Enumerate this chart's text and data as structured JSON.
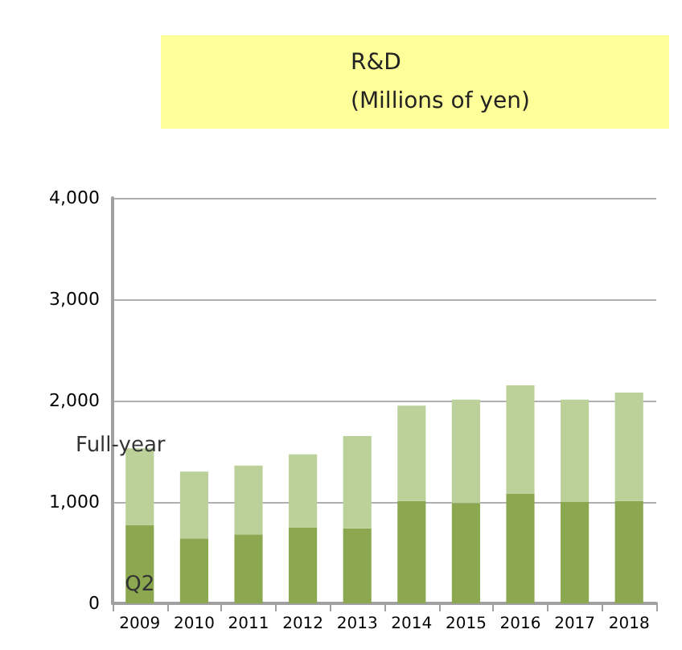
{
  "chart_data": {
    "type": "bar",
    "title": "R&D",
    "subtitle": "(Millions of yen)",
    "stacked": true,
    "categories": [
      "2009",
      "2010",
      "2011",
      "2012",
      "2013",
      "2014",
      "2015",
      "2016",
      "2017",
      "2018"
    ],
    "series": [
      {
        "name": "Q2",
        "color": "#8ba74f",
        "values": [
          770,
          640,
          680,
          750,
          740,
          1010,
          990,
          1080,
          1000,
          1010
        ]
      },
      {
        "name": "Full-year",
        "color": "#bcd19a",
        "values": [
          760,
          660,
          680,
          720,
          910,
          940,
          1020,
          1070,
          1010,
          1070
        ]
      }
    ],
    "ylim": [
      0,
      4000
    ],
    "yticks": [
      0,
      {
        "value": 1000,
        "label": "1,000"
      },
      {
        "value": 2000,
        "label": "2,000"
      },
      {
        "value": 3000,
        "label": "3,000"
      },
      {
        "value": 4000,
        "label": "4,000"
      }
    ],
    "grid": "y",
    "legend": false
  }
}
